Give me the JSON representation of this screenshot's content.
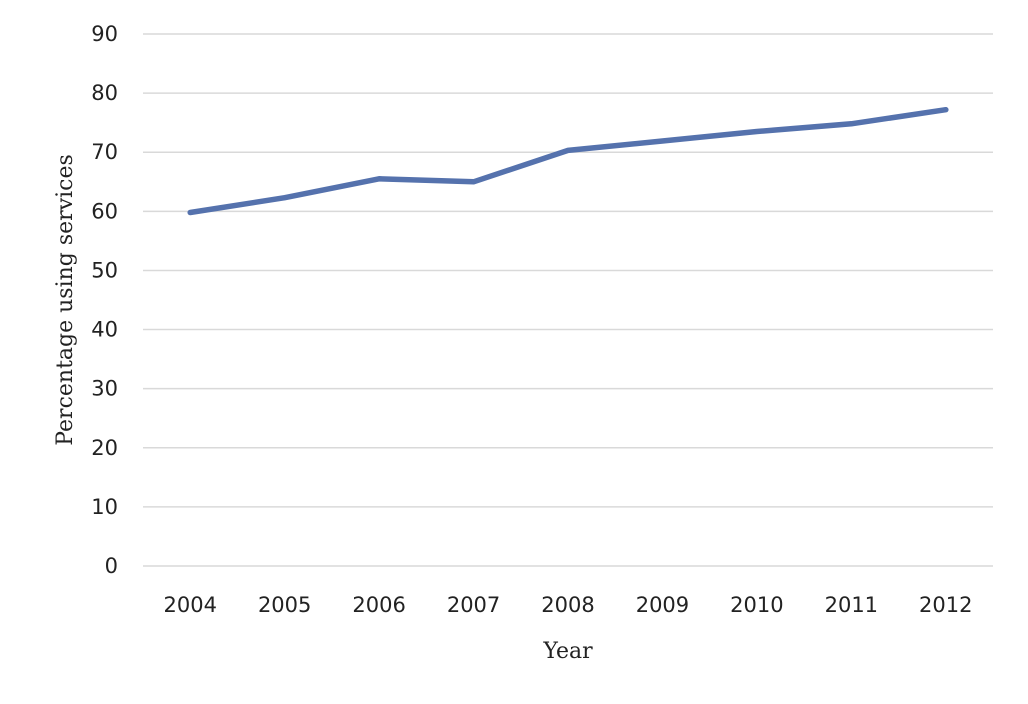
{
  "chart_data": {
    "type": "line",
    "title": "",
    "xlabel": "Year",
    "ylabel": "Percentage  using services",
    "categories": [
      "2004",
      "2005",
      "2006",
      "2007",
      "2008",
      "2009",
      "2010",
      "2011",
      "2012"
    ],
    "series": [
      {
        "values": [
          59.8,
          62.3,
          65.5,
          65.0,
          70.3,
          71.9,
          73.5,
          74.8,
          77.2
        ],
        "color": "#5572ad"
      }
    ],
    "ylim": [
      0,
      90
    ],
    "yticks": [
      "0",
      "10",
      "20",
      "30",
      "40",
      "50",
      "60",
      "70",
      "80",
      "90"
    ],
    "grid": true,
    "legend": "none"
  }
}
